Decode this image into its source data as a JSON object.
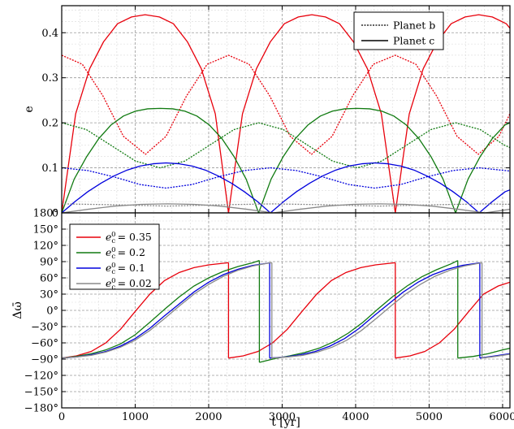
{
  "chart_data": [
    {
      "type": "line",
      "panel": "top",
      "ylabel": "e",
      "xlabel": "",
      "xlim": [
        0,
        6100
      ],
      "ylim": [
        0,
        0.46
      ],
      "x_ticks": [
        0,
        1000,
        2000,
        3000,
        4000,
        5000,
        6000
      ],
      "x_tick_labels": [
        "",
        "",
        "",
        "",
        "",
        "",
        ""
      ],
      "y_ticks": [
        0,
        0.1,
        0.2,
        0.3,
        0.4
      ],
      "y_tick_labels": [
        "0",
        "0.1",
        "0.2",
        "0.3",
        "0.4"
      ],
      "grid": true,
      "legend_position": "top-right",
      "legend": [
        {
          "label": "Planet b",
          "style": "dotted"
        },
        {
          "label": "Planet c",
          "style": "solid"
        }
      ],
      "series": [
        {
          "planet": "b",
          "color": "#e8000b",
          "x": [
            0,
            280,
            560,
            840,
            1140,
            1420,
            1700,
            1980,
            2270,
            2550,
            2830,
            3110,
            3400,
            3680,
            3960,
            4240,
            4540,
            4820,
            5100,
            5380,
            5670,
            5950,
            6100
          ],
          "y": [
            0.35,
            0.33,
            0.26,
            0.17,
            0.13,
            0.17,
            0.26,
            0.33,
            0.35,
            0.33,
            0.26,
            0.17,
            0.13,
            0.17,
            0.26,
            0.33,
            0.35,
            0.33,
            0.26,
            0.17,
            0.13,
            0.17,
            0.22
          ]
        },
        {
          "planet": "c",
          "color": "#e8000b",
          "x": [
            0,
            190,
            380,
            570,
            760,
            950,
            1135,
            1330,
            1520,
            1710,
            1900,
            2090,
            2270,
            2460,
            2650,
            2840,
            3030,
            3220,
            3405,
            3590,
            3780,
            3970,
            4160,
            4350,
            4540,
            4730,
            4920,
            5110,
            5300,
            5490,
            5675,
            5860,
            6050,
            6100
          ],
          "y": [
            0,
            0.22,
            0.32,
            0.38,
            0.42,
            0.435,
            0.44,
            0.435,
            0.42,
            0.38,
            0.32,
            0.22,
            0,
            0.22,
            0.32,
            0.38,
            0.42,
            0.435,
            0.44,
            0.435,
            0.42,
            0.38,
            0.32,
            0.22,
            0,
            0.22,
            0.32,
            0.38,
            0.42,
            0.435,
            0.44,
            0.435,
            0.42,
            0.41
          ]
        },
        {
          "planet": "b",
          "color": "#107a10",
          "x": [
            0,
            335,
            670,
            1005,
            1340,
            1675,
            2010,
            2345,
            2680,
            3015,
            3350,
            3685,
            4020,
            4355,
            4690,
            5025,
            5360,
            5695,
            6030,
            6100
          ],
          "y": [
            0.2,
            0.185,
            0.15,
            0.115,
            0.1,
            0.115,
            0.15,
            0.185,
            0.2,
            0.185,
            0.15,
            0.115,
            0.1,
            0.115,
            0.15,
            0.185,
            0.2,
            0.185,
            0.15,
            0.145
          ]
        },
        {
          "planet": "c",
          "color": "#107a10",
          "x": [
            0,
            170,
            340,
            505,
            670,
            840,
            1005,
            1170,
            1340,
            1510,
            1675,
            1840,
            2010,
            2180,
            2345,
            2510,
            2680,
            2850,
            3015,
            3180,
            3350,
            3520,
            3685,
            3850,
            4020,
            4190,
            4355,
            4520,
            4690,
            4860,
            5025,
            5190,
            5360,
            5530,
            5695,
            5860,
            6030,
            6100
          ],
          "y": [
            0,
            0.075,
            0.125,
            0.165,
            0.195,
            0.215,
            0.226,
            0.231,
            0.232,
            0.231,
            0.226,
            0.215,
            0.195,
            0.165,
            0.125,
            0.075,
            0,
            0.075,
            0.125,
            0.165,
            0.195,
            0.215,
            0.226,
            0.231,
            0.232,
            0.231,
            0.226,
            0.215,
            0.195,
            0.165,
            0.125,
            0.075,
            0,
            0.075,
            0.125,
            0.165,
            0.195,
            0.2
          ]
        },
        {
          "planet": "b",
          "color": "#0000dd",
          "x": [
            0,
            355,
            710,
            1065,
            1420,
            1775,
            2130,
            2485,
            2840,
            3195,
            3550,
            3905,
            4260,
            4615,
            4970,
            5325,
            5680,
            6035,
            6100
          ],
          "y": [
            0.1,
            0.094,
            0.08,
            0.063,
            0.055,
            0.063,
            0.08,
            0.094,
            0.1,
            0.094,
            0.08,
            0.063,
            0.055,
            0.063,
            0.08,
            0.094,
            0.1,
            0.094,
            0.093
          ]
        },
        {
          "planet": "c",
          "color": "#0000dd",
          "x": [
            0,
            180,
            355,
            535,
            710,
            890,
            1065,
            1245,
            1420,
            1600,
            1775,
            1955,
            2130,
            2310,
            2485,
            2665,
            2840,
            3020,
            3195,
            3375,
            3550,
            3730,
            3905,
            4085,
            4260,
            4440,
            4615,
            4795,
            4970,
            5150,
            5325,
            5505,
            5680,
            5860,
            6035,
            6100
          ],
          "y": [
            0,
            0.025,
            0.047,
            0.066,
            0.082,
            0.095,
            0.104,
            0.109,
            0.111,
            0.109,
            0.104,
            0.095,
            0.082,
            0.066,
            0.047,
            0.025,
            0,
            0.025,
            0.047,
            0.066,
            0.082,
            0.095,
            0.104,
            0.109,
            0.111,
            0.109,
            0.104,
            0.095,
            0.082,
            0.066,
            0.047,
            0.025,
            0,
            0.025,
            0.047,
            0.051
          ]
        },
        {
          "planet": "b",
          "color": "#8a8a8a",
          "x": [
            0,
            720,
            1440,
            2160,
            2880,
            3600,
            4320,
            5040,
            5760,
            6100
          ],
          "y": [
            0.02,
            0.018,
            0.015,
            0.018,
            0.02,
            0.018,
            0.015,
            0.018,
            0.02,
            0.019
          ]
        },
        {
          "planet": "c",
          "color": "#8a8a8a",
          "x": [
            0,
            360,
            720,
            1080,
            1440,
            1800,
            2160,
            2520,
            2880,
            3240,
            3600,
            3960,
            4320,
            4680,
            5040,
            5400,
            5760,
            6100
          ],
          "y": [
            0,
            0.008,
            0.015,
            0.019,
            0.02,
            0.019,
            0.015,
            0.008,
            0,
            0.008,
            0.015,
            0.019,
            0.02,
            0.019,
            0.015,
            0.008,
            0,
            0.008
          ]
        }
      ]
    },
    {
      "type": "line",
      "panel": "bottom",
      "ylabel": "Δω̄",
      "xlabel": "t [yr]",
      "xlim": [
        0,
        6100
      ],
      "ylim": [
        -180,
        180
      ],
      "x_ticks": [
        0,
        1000,
        2000,
        3000,
        4000,
        5000,
        6000
      ],
      "x_tick_labels": [
        "0",
        "1000",
        "2000",
        "3000",
        "4000",
        "5000",
        "6000"
      ],
      "y_ticks": [
        -180,
        -150,
        -120,
        -90,
        -60,
        -30,
        0,
        30,
        60,
        90,
        120,
        150,
        180
      ],
      "y_tick_labels": [
        "−180°",
        "−150°",
        "−120°",
        "−90°",
        "−60°",
        "−30°",
        "0°",
        "30°",
        "60°",
        "90°",
        "120°",
        "150°",
        "180°"
      ],
      "grid": true,
      "legend_position": "top-left",
      "legend": [
        {
          "label_main": "e",
          "label_sub": "c",
          "label_sup": "0",
          "label_value": "= 0.35",
          "color": "#e8000b"
        },
        {
          "label_main": "e",
          "label_sub": "c",
          "label_sup": "0",
          "label_value": "= 0.2",
          "color": "#107a10"
        },
        {
          "label_main": "e",
          "label_sub": "c",
          "label_sup": "0",
          "label_value": "= 0.1",
          "color": "#0000dd"
        },
        {
          "label_main": "e",
          "label_sub": "c",
          "label_sup": "0",
          "label_value": "= 0.02",
          "color": "#8a8a8a"
        }
      ],
      "series": [
        {
          "color": "#e8000b",
          "segments": [
            {
              "x": [
                0,
                200,
                400,
                600,
                800,
                1000,
                1200,
                1400,
                1600,
                1800,
                2000,
                2200,
                2270
              ],
              "y": [
                -88,
                -84,
                -76,
                -60,
                -35,
                -2,
                30,
                55,
                70,
                79,
                84,
                87,
                88
              ]
            },
            {
              "x": [
                2270,
                2470,
                2670,
                2870,
                3070,
                3270,
                3470,
                3670,
                3870,
                4070,
                4270,
                4470,
                4540
              ],
              "y": [
                -88,
                -84,
                -76,
                -60,
                -35,
                -2,
                30,
                55,
                70,
                79,
                84,
                87,
                88
              ]
            },
            {
              "x": [
                4540,
                4740,
                4940,
                5140,
                5340,
                5540,
                5740,
                5940,
                6100
              ],
              "y": [
                -88,
                -84,
                -76,
                -60,
                -35,
                -2,
                30,
                45,
                52
              ]
            }
          ]
        },
        {
          "color": "#107a10",
          "segments": [
            {
              "x": [
                0,
                200,
                400,
                600,
                800,
                1000,
                1200,
                1400,
                1600,
                1800,
                2000,
                2200,
                2400,
                2600,
                2690
              ],
              "y": [
                -88,
                -85,
                -80,
                -73,
                -62,
                -45,
                -22,
                2,
                25,
                45,
                60,
                72,
                81,
                88,
                92
              ]
            },
            {
              "x": [
                2690,
                2900,
                3100,
                3300,
                3500,
                3700,
                3900,
                4100,
                4300,
                4500,
                4700,
                4900,
                5100,
                5300,
                5390
              ],
              "y": [
                -96,
                -89,
                -84,
                -78,
                -70,
                -58,
                -42,
                -22,
                2,
                25,
                45,
                62,
                75,
                86,
                92
              ]
            },
            {
              "x": [
                5390,
                5600,
                5800,
                6000,
                6100
              ],
              "y": [
                -88,
                -85,
                -80,
                -73,
                -70
              ]
            }
          ]
        },
        {
          "color": "#0000dd",
          "segments": [
            {
              "x": [
                0,
                200,
                400,
                600,
                800,
                1000,
                1200,
                1400,
                1600,
                1800,
                2000,
                2200,
                2400,
                2600,
                2800,
                2830
              ],
              "y": [
                -88,
                -86,
                -82,
                -76,
                -66,
                -52,
                -33,
                -10,
                12,
                34,
                52,
                66,
                76,
                83,
                87,
                88
              ]
            },
            {
              "x": [
                2830,
                3050,
                3250,
                3450,
                3650,
                3850,
                4050,
                4250,
                4450,
                4650,
                4850,
                5050,
                5250,
                5450,
                5650,
                5690
              ],
              "y": [
                -88,
                -86,
                -82,
                -76,
                -66,
                -52,
                -33,
                -10,
                12,
                34,
                52,
                66,
                76,
                83,
                87,
                88
              ]
            },
            {
              "x": [
                5690,
                5900,
                6100
              ],
              "y": [
                -88,
                -84,
                -80
              ]
            }
          ]
        },
        {
          "color": "#8a8a8a",
          "segments": [
            {
              "x": [
                0,
                200,
                400,
                600,
                800,
                1000,
                1200,
                1400,
                1600,
                1800,
                2000,
                2200,
                2400,
                2600,
                2800,
                2860
              ],
              "y": [
                -88,
                -86,
                -83,
                -77,
                -68,
                -55,
                -37,
                -15,
                8,
                30,
                48,
                63,
                74,
                82,
                87,
                88
              ]
            },
            {
              "x": [
                2860,
                3080,
                3280,
                3480,
                3680,
                3880,
                4080,
                4280,
                4480,
                4680,
                4880,
                5080,
                5280,
                5480,
                5680,
                5720
              ],
              "y": [
                -88,
                -86,
                -83,
                -77,
                -68,
                -55,
                -37,
                -15,
                8,
                30,
                48,
                63,
                74,
                82,
                87,
                88
              ]
            },
            {
              "x": [
                5720,
                5900,
                6100
              ],
              "y": [
                -88,
                -85,
                -81
              ]
            }
          ]
        }
      ]
    }
  ]
}
